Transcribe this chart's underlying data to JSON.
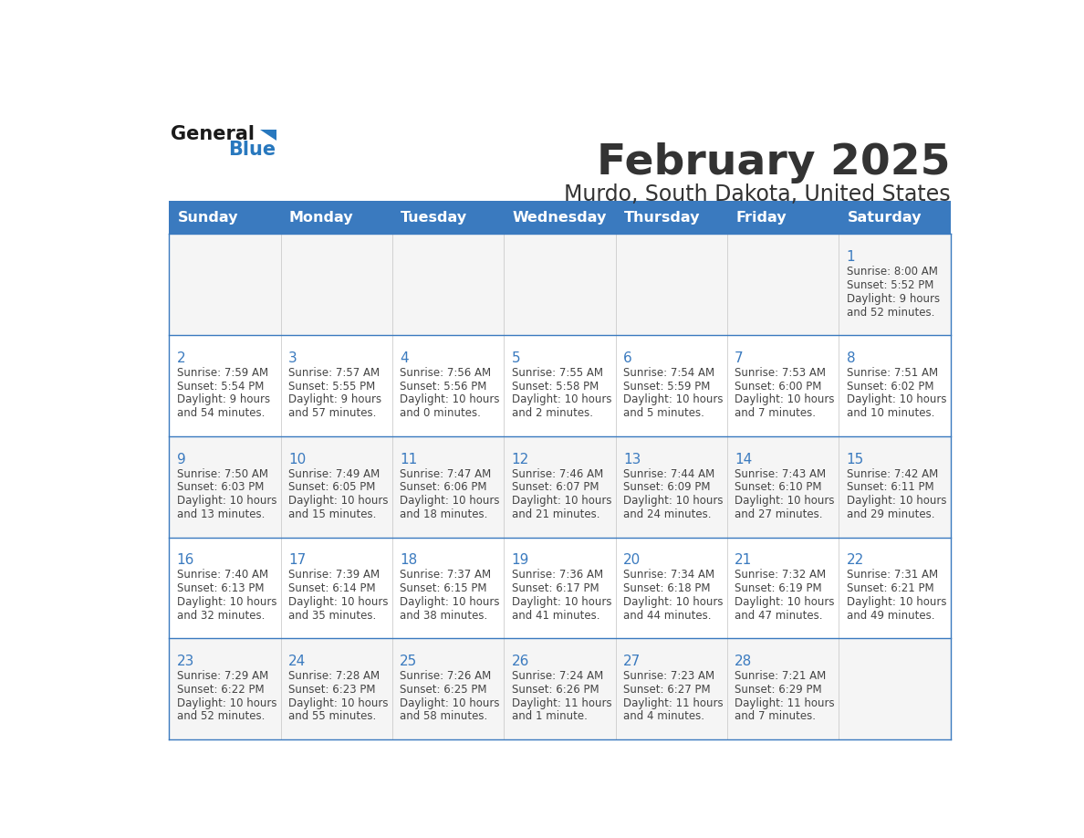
{
  "title": "February 2025",
  "subtitle": "Murdo, South Dakota, United States",
  "header_color": "#3a7abf",
  "header_text_color": "#ffffff",
  "cell_bg_odd": "#f5f5f5",
  "cell_bg_even": "#ffffff",
  "border_color": "#3a7abf",
  "day_headers": [
    "Sunday",
    "Monday",
    "Tuesday",
    "Wednesday",
    "Thursday",
    "Friday",
    "Saturday"
  ],
  "text_color": "#333333",
  "day_num_color": "#3a7abf",
  "info_text_color": "#444444",
  "logo_general_color": "#1a1a1a",
  "logo_blue_color": "#2878be",
  "days": [
    {
      "date": 1,
      "col": 6,
      "row": 0,
      "sunrise": "8:00 AM",
      "sunset": "5:52 PM",
      "daylight_line1": "Daylight: 9 hours",
      "daylight_line2": "and 52 minutes."
    },
    {
      "date": 2,
      "col": 0,
      "row": 1,
      "sunrise": "7:59 AM",
      "sunset": "5:54 PM",
      "daylight_line1": "Daylight: 9 hours",
      "daylight_line2": "and 54 minutes."
    },
    {
      "date": 3,
      "col": 1,
      "row": 1,
      "sunrise": "7:57 AM",
      "sunset": "5:55 PM",
      "daylight_line1": "Daylight: 9 hours",
      "daylight_line2": "and 57 minutes."
    },
    {
      "date": 4,
      "col": 2,
      "row": 1,
      "sunrise": "7:56 AM",
      "sunset": "5:56 PM",
      "daylight_line1": "Daylight: 10 hours",
      "daylight_line2": "and 0 minutes."
    },
    {
      "date": 5,
      "col": 3,
      "row": 1,
      "sunrise": "7:55 AM",
      "sunset": "5:58 PM",
      "daylight_line1": "Daylight: 10 hours",
      "daylight_line2": "and 2 minutes."
    },
    {
      "date": 6,
      "col": 4,
      "row": 1,
      "sunrise": "7:54 AM",
      "sunset": "5:59 PM",
      "daylight_line1": "Daylight: 10 hours",
      "daylight_line2": "and 5 minutes."
    },
    {
      "date": 7,
      "col": 5,
      "row": 1,
      "sunrise": "7:53 AM",
      "sunset": "6:00 PM",
      "daylight_line1": "Daylight: 10 hours",
      "daylight_line2": "and 7 minutes."
    },
    {
      "date": 8,
      "col": 6,
      "row": 1,
      "sunrise": "7:51 AM",
      "sunset": "6:02 PM",
      "daylight_line1": "Daylight: 10 hours",
      "daylight_line2": "and 10 minutes."
    },
    {
      "date": 9,
      "col": 0,
      "row": 2,
      "sunrise": "7:50 AM",
      "sunset": "6:03 PM",
      "daylight_line1": "Daylight: 10 hours",
      "daylight_line2": "and 13 minutes."
    },
    {
      "date": 10,
      "col": 1,
      "row": 2,
      "sunrise": "7:49 AM",
      "sunset": "6:05 PM",
      "daylight_line1": "Daylight: 10 hours",
      "daylight_line2": "and 15 minutes."
    },
    {
      "date": 11,
      "col": 2,
      "row": 2,
      "sunrise": "7:47 AM",
      "sunset": "6:06 PM",
      "daylight_line1": "Daylight: 10 hours",
      "daylight_line2": "and 18 minutes."
    },
    {
      "date": 12,
      "col": 3,
      "row": 2,
      "sunrise": "7:46 AM",
      "sunset": "6:07 PM",
      "daylight_line1": "Daylight: 10 hours",
      "daylight_line2": "and 21 minutes."
    },
    {
      "date": 13,
      "col": 4,
      "row": 2,
      "sunrise": "7:44 AM",
      "sunset": "6:09 PM",
      "daylight_line1": "Daylight: 10 hours",
      "daylight_line2": "and 24 minutes."
    },
    {
      "date": 14,
      "col": 5,
      "row": 2,
      "sunrise": "7:43 AM",
      "sunset": "6:10 PM",
      "daylight_line1": "Daylight: 10 hours",
      "daylight_line2": "and 27 minutes."
    },
    {
      "date": 15,
      "col": 6,
      "row": 2,
      "sunrise": "7:42 AM",
      "sunset": "6:11 PM",
      "daylight_line1": "Daylight: 10 hours",
      "daylight_line2": "and 29 minutes."
    },
    {
      "date": 16,
      "col": 0,
      "row": 3,
      "sunrise": "7:40 AM",
      "sunset": "6:13 PM",
      "daylight_line1": "Daylight: 10 hours",
      "daylight_line2": "and 32 minutes."
    },
    {
      "date": 17,
      "col": 1,
      "row": 3,
      "sunrise": "7:39 AM",
      "sunset": "6:14 PM",
      "daylight_line1": "Daylight: 10 hours",
      "daylight_line2": "and 35 minutes."
    },
    {
      "date": 18,
      "col": 2,
      "row": 3,
      "sunrise": "7:37 AM",
      "sunset": "6:15 PM",
      "daylight_line1": "Daylight: 10 hours",
      "daylight_line2": "and 38 minutes."
    },
    {
      "date": 19,
      "col": 3,
      "row": 3,
      "sunrise": "7:36 AM",
      "sunset": "6:17 PM",
      "daylight_line1": "Daylight: 10 hours",
      "daylight_line2": "and 41 minutes."
    },
    {
      "date": 20,
      "col": 4,
      "row": 3,
      "sunrise": "7:34 AM",
      "sunset": "6:18 PM",
      "daylight_line1": "Daylight: 10 hours",
      "daylight_line2": "and 44 minutes."
    },
    {
      "date": 21,
      "col": 5,
      "row": 3,
      "sunrise": "7:32 AM",
      "sunset": "6:19 PM",
      "daylight_line1": "Daylight: 10 hours",
      "daylight_line2": "and 47 minutes."
    },
    {
      "date": 22,
      "col": 6,
      "row": 3,
      "sunrise": "7:31 AM",
      "sunset": "6:21 PM",
      "daylight_line1": "Daylight: 10 hours",
      "daylight_line2": "and 49 minutes."
    },
    {
      "date": 23,
      "col": 0,
      "row": 4,
      "sunrise": "7:29 AM",
      "sunset": "6:22 PM",
      "daylight_line1": "Daylight: 10 hours",
      "daylight_line2": "and 52 minutes."
    },
    {
      "date": 24,
      "col": 1,
      "row": 4,
      "sunrise": "7:28 AM",
      "sunset": "6:23 PM",
      "daylight_line1": "Daylight: 10 hours",
      "daylight_line2": "and 55 minutes."
    },
    {
      "date": 25,
      "col": 2,
      "row": 4,
      "sunrise": "7:26 AM",
      "sunset": "6:25 PM",
      "daylight_line1": "Daylight: 10 hours",
      "daylight_line2": "and 58 minutes."
    },
    {
      "date": 26,
      "col": 3,
      "row": 4,
      "sunrise": "7:24 AM",
      "sunset": "6:26 PM",
      "daylight_line1": "Daylight: 11 hours",
      "daylight_line2": "and 1 minute."
    },
    {
      "date": 27,
      "col": 4,
      "row": 4,
      "sunrise": "7:23 AM",
      "sunset": "6:27 PM",
      "daylight_line1": "Daylight: 11 hours",
      "daylight_line2": "and 4 minutes."
    },
    {
      "date": 28,
      "col": 5,
      "row": 4,
      "sunrise": "7:21 AM",
      "sunset": "6:29 PM",
      "daylight_line1": "Daylight: 11 hours",
      "daylight_line2": "and 7 minutes."
    }
  ]
}
